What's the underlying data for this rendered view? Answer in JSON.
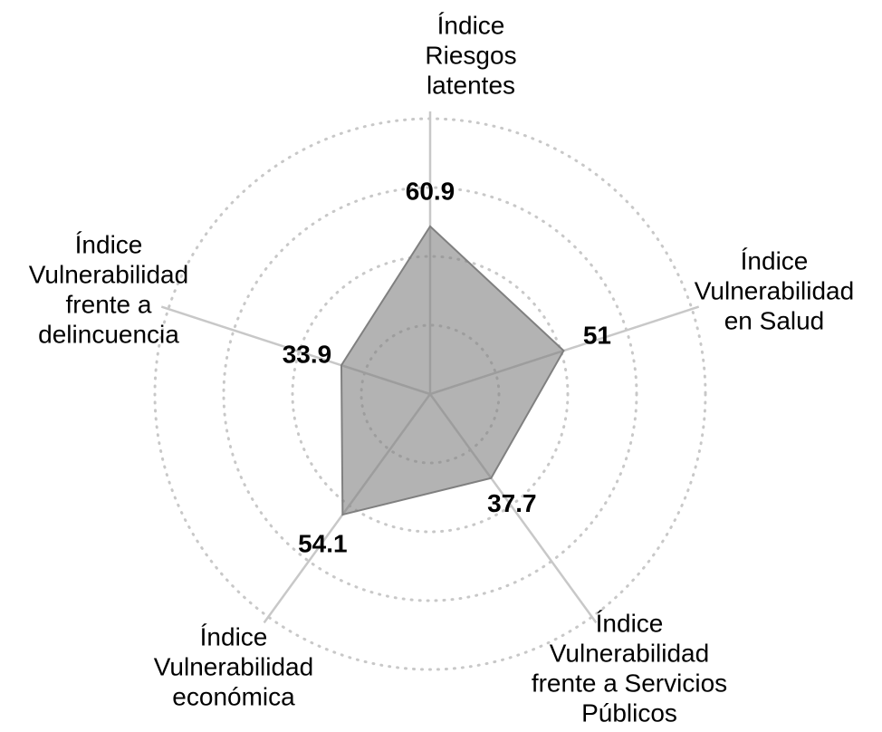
{
  "chart_data": {
    "type": "radar",
    "categories": [
      [
        "Índice",
        "Riesgos",
        "latentes"
      ],
      [
        "Índice",
        "Vulnerabilidad",
        "en Salud"
      ],
      [
        "Índice",
        "Vulnerabilidad",
        "frente a Servicios",
        "Públicos"
      ],
      [
        "Índice",
        "Vulnerabilidad",
        "económica"
      ],
      [
        "Índice",
        "Vulnerabilidad",
        "frente a",
        "delincuencia"
      ]
    ],
    "values": [
      60.9,
      51,
      37.7,
      54.1,
      33.9
    ],
    "color": "#808080",
    "rlim": [
      0,
      100
    ],
    "rticks": [
      25,
      50,
      75,
      100
    ],
    "grid": true
  }
}
